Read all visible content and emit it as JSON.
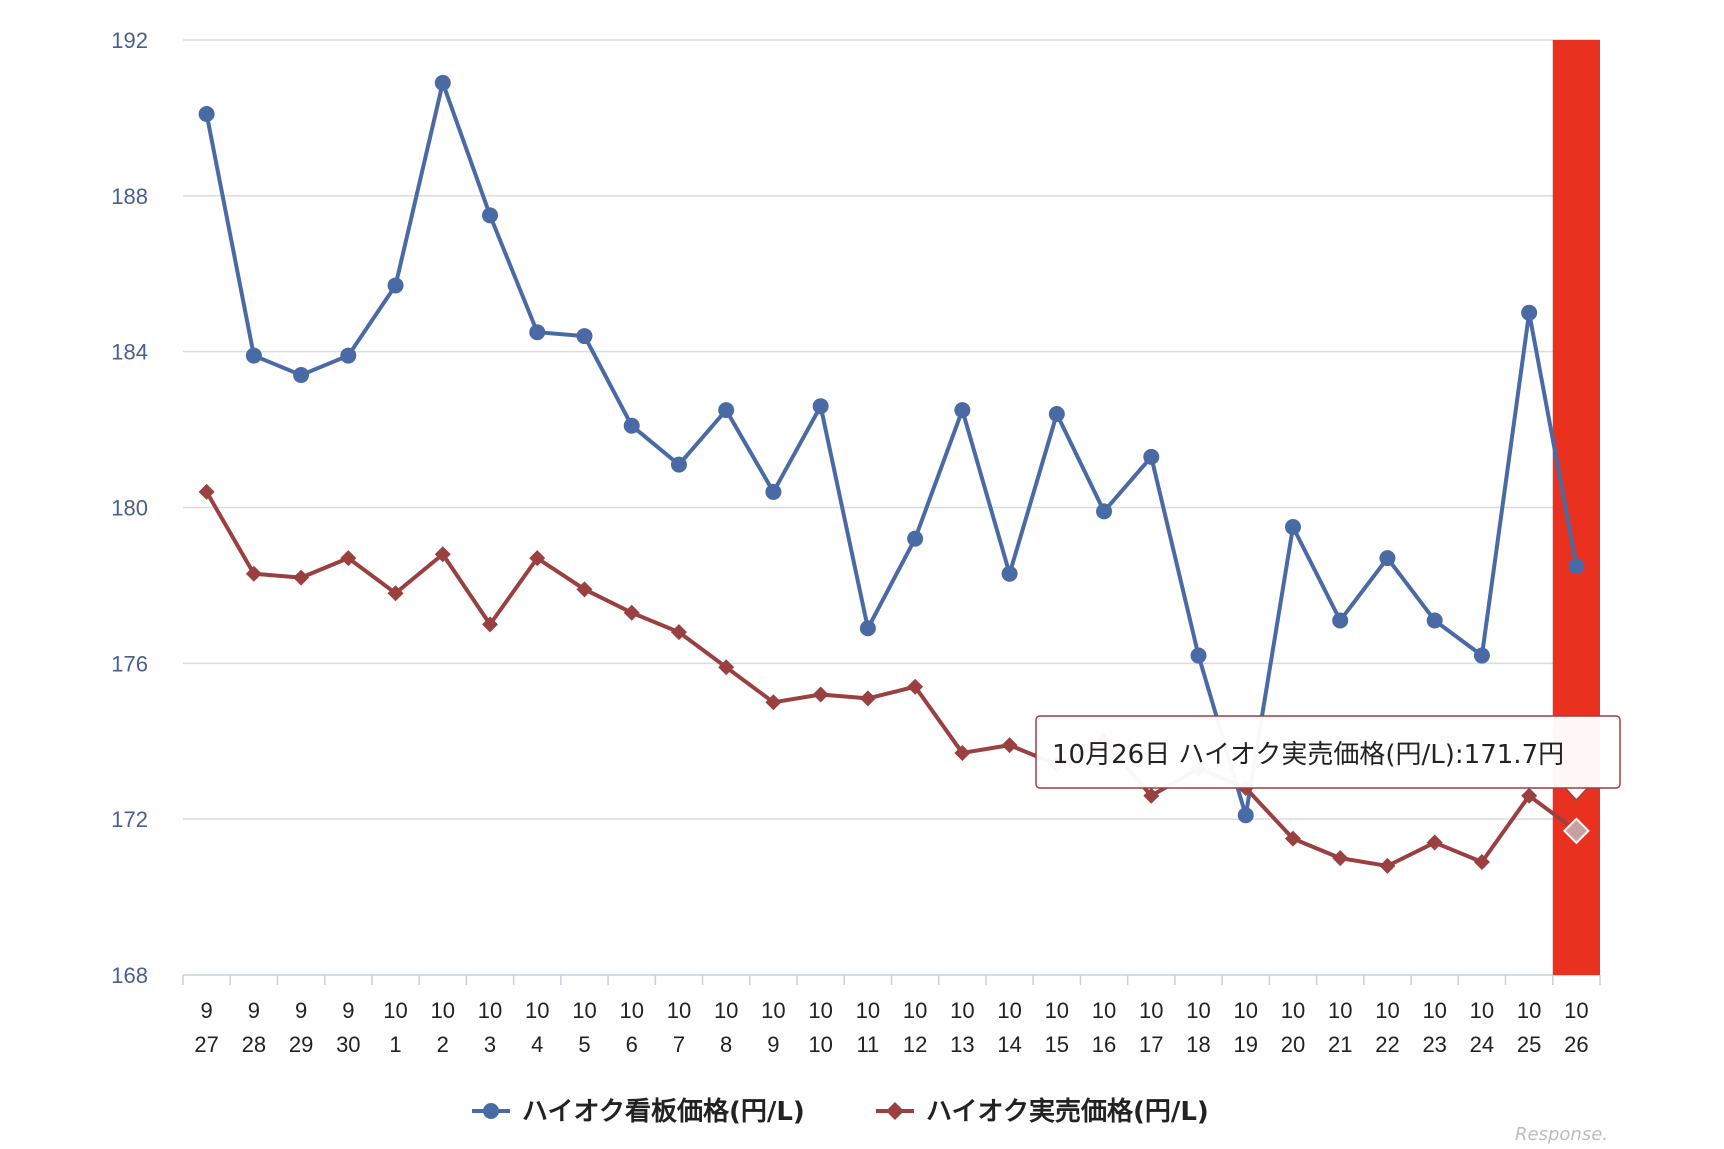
{
  "chart_data": {
    "type": "line",
    "categories": [
      [
        "9",
        "27"
      ],
      [
        "9",
        "28"
      ],
      [
        "9",
        "29"
      ],
      [
        "9",
        "30"
      ],
      [
        "10",
        "1"
      ],
      [
        "10",
        "2"
      ],
      [
        "10",
        "3"
      ],
      [
        "10",
        "4"
      ],
      [
        "10",
        "5"
      ],
      [
        "10",
        "6"
      ],
      [
        "10",
        "7"
      ],
      [
        "10",
        "8"
      ],
      [
        "10",
        "9"
      ],
      [
        "10",
        "10"
      ],
      [
        "10",
        "11"
      ],
      [
        "10",
        "12"
      ],
      [
        "10",
        "13"
      ],
      [
        "10",
        "14"
      ],
      [
        "10",
        "15"
      ],
      [
        "10",
        "16"
      ],
      [
        "10",
        "17"
      ],
      [
        "10",
        "18"
      ],
      [
        "10",
        "19"
      ],
      [
        "10",
        "20"
      ],
      [
        "10",
        "21"
      ],
      [
        "10",
        "22"
      ],
      [
        "10",
        "23"
      ],
      [
        "10",
        "24"
      ],
      [
        "10",
        "25"
      ],
      [
        "10",
        "26"
      ]
    ],
    "series": [
      {
        "name": "ハイオク看板価格(円/L)",
        "color": "#4a6aa5",
        "marker": "circle",
        "values": [
          190.1,
          183.9,
          183.4,
          183.9,
          185.7,
          190.9,
          187.5,
          184.5,
          184.4,
          182.1,
          181.1,
          182.5,
          180.4,
          182.6,
          176.9,
          179.2,
          182.5,
          178.3,
          182.4,
          179.9,
          181.3,
          176.2,
          172.1,
          179.5,
          177.1,
          178.7,
          177.1,
          176.2,
          185.0,
          178.5
        ]
      },
      {
        "name": "ハイオク実売価格(円/L)",
        "color": "#9a4040",
        "marker": "diamond",
        "values": [
          180.4,
          178.3,
          178.2,
          178.7,
          177.8,
          178.8,
          177.0,
          178.7,
          177.9,
          177.3,
          176.8,
          175.9,
          175.0,
          175.2,
          175.1,
          175.4,
          173.7,
          173.9,
          173.4,
          174.0,
          172.6,
          173.3,
          172.8,
          171.5,
          171.0,
          170.8,
          171.4,
          170.9,
          172.6,
          171.7
        ]
      }
    ],
    "ylim": [
      168,
      192
    ],
    "yticks": [
      "192",
      "188",
      "184",
      "180",
      "176",
      "172",
      "168"
    ],
    "grid": true,
    "legend": "bottom",
    "highlight_index": 29,
    "highlight_color": "#e8321f",
    "tooltip": {
      "text": "10月26日 ハイオク実売価格(円/L):171.7円",
      "series_index": 1,
      "point_index": 29
    }
  },
  "legend": {
    "items": [
      {
        "label": "ハイオク看板価格(円/L)"
      },
      {
        "label": "ハイオク実売価格(円/L)"
      }
    ]
  },
  "watermark": "Response."
}
